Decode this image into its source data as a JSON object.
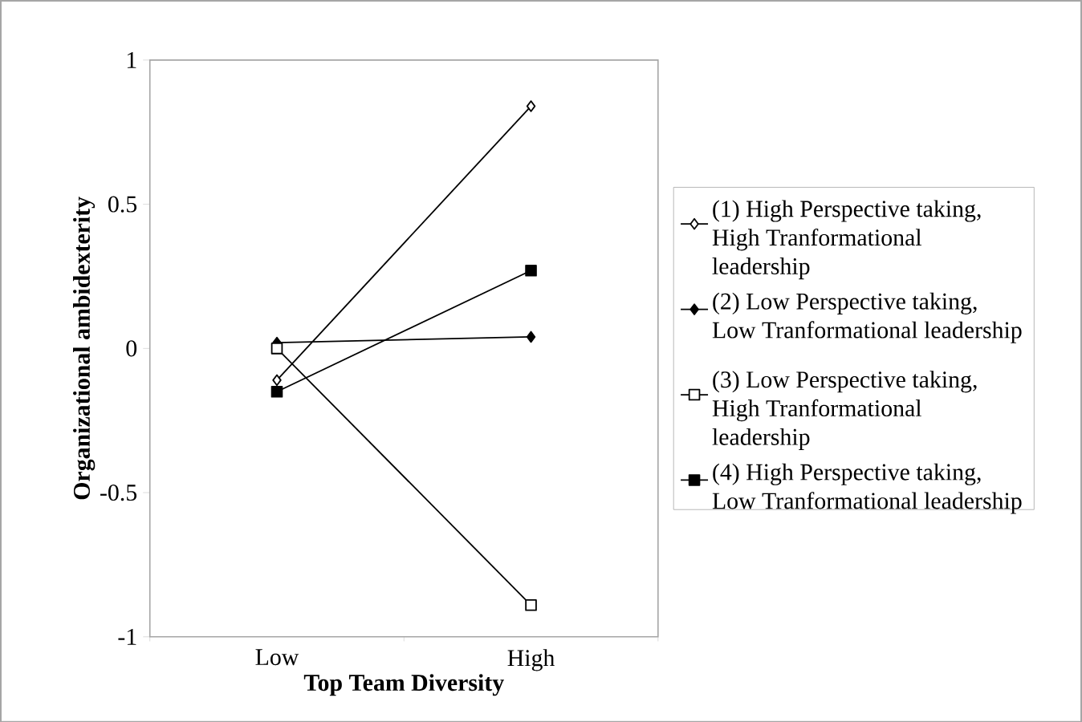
{
  "chart_data": {
    "type": "line",
    "xlabel": "Top Team Diversity",
    "ylabel": "Organizational ambidexterity",
    "categories": [
      "Low",
      "High"
    ],
    "series": [
      {
        "name": "(1) High Perspective taking, High Tranformational leadership",
        "color": "#000000",
        "marker": "diamond-open",
        "values": [
          -0.11,
          0.84
        ]
      },
      {
        "name": "(2) Low Perspective taking, Low Tranformational leadership",
        "color": "#000000",
        "marker": "diamond",
        "values": [
          0.02,
          0.04
        ]
      },
      {
        "name": "(3) Low Perspective taking, High Tranformational leadership",
        "color": "#000000",
        "marker": "square-open",
        "values": [
          0,
          -0.89
        ]
      },
      {
        "name": "(4) High Perspective taking, Low Tranformational leadership",
        "color": "#000000",
        "marker": "square",
        "values": [
          -0.15,
          0.27
        ]
      }
    ],
    "ylim": [
      -1,
      1
    ],
    "yticks": [
      -1,
      -0.5,
      0,
      0.5,
      1
    ],
    "grid": false,
    "legend": "right",
    "line_style": "solid"
  }
}
